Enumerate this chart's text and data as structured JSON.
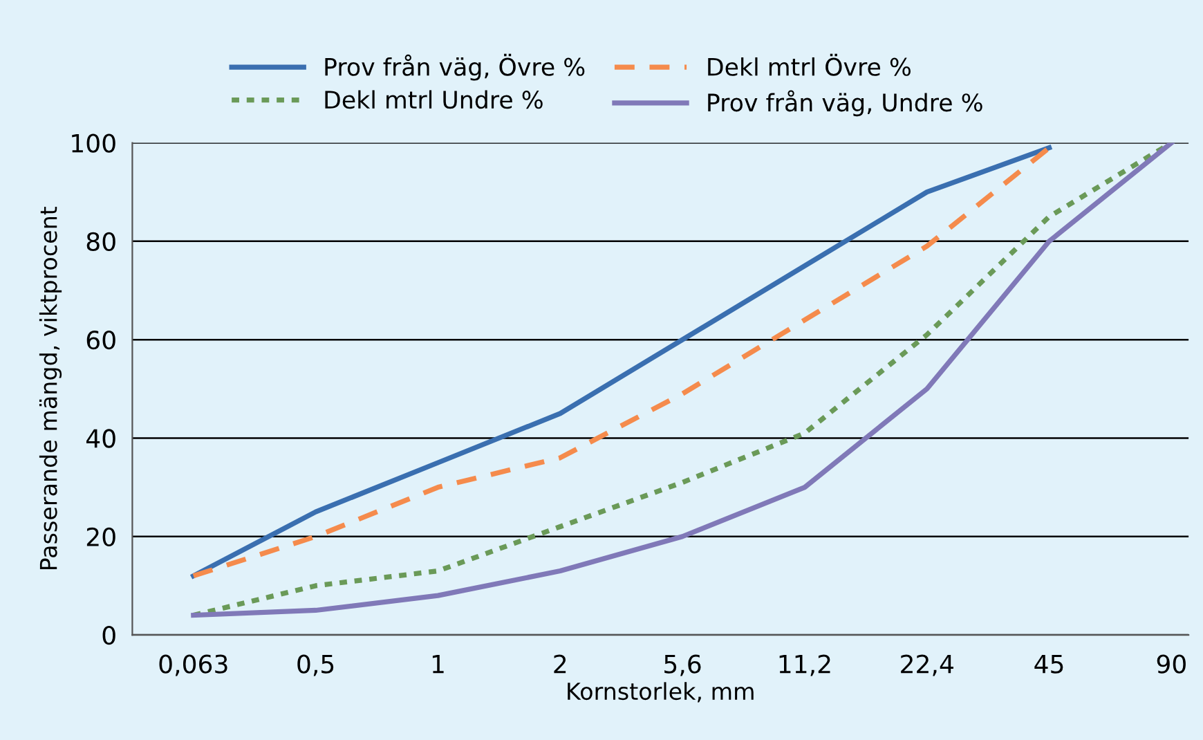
{
  "chart_data": {
    "type": "line",
    "xlabel": "Kornstorlek, mm",
    "ylabel": "Passerande mängd, viktprocent",
    "categories": [
      "0,063",
      "0,5",
      "1",
      "2",
      "5,6",
      "11,2",
      "22,4",
      "45",
      "90"
    ],
    "series": [
      {
        "name": "Prov från väg, Övre %",
        "color": "#3a6fb0",
        "line_style": "solid",
        "values": [
          12,
          25,
          35,
          45,
          60,
          75,
          90,
          99,
          null
        ]
      },
      {
        "name": "Dekl mtrl Övre %",
        "color": "#f58b4c",
        "line_style": "dashed",
        "values": [
          12,
          20,
          30,
          36,
          49,
          64,
          79,
          99,
          null
        ]
      },
      {
        "name": "Dekl mtrl Undre %",
        "color": "#6a9a58",
        "line_style": "dotted",
        "values": [
          4,
          10,
          13,
          22,
          31,
          41,
          61,
          85,
          100
        ]
      },
      {
        "name": "Prov från väg, Undre %",
        "color": "#8079b8",
        "line_style": "solid",
        "values": [
          4,
          5,
          8,
          13,
          20,
          30,
          50,
          80,
          100
        ]
      }
    ],
    "ylim": [
      0,
      100
    ],
    "yticks": [
      0,
      20,
      40,
      60,
      80,
      100
    ],
    "grid": "y",
    "legend": "top",
    "marker": "none"
  }
}
